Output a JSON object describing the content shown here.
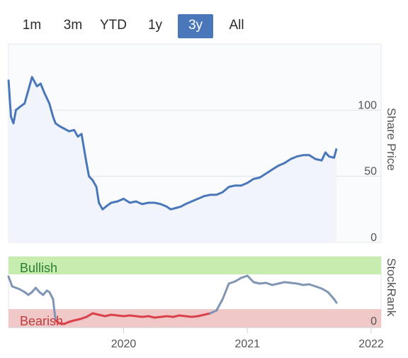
{
  "range_selector": {
    "buttons": [
      {
        "label": "1m",
        "active": false
      },
      {
        "label": "3m",
        "active": false
      },
      {
        "label": "YTD",
        "active": false
      },
      {
        "label": "1y",
        "active": false
      },
      {
        "label": "3y",
        "active": true
      },
      {
        "label": "All",
        "active": false
      }
    ]
  },
  "colors": {
    "accent": "#4a77b9",
    "price_line": "#4a77b9",
    "bullish_zone": "#c6ecb0",
    "bearish_zone": "#f1c8c8",
    "bullish_text": "#2e7d32",
    "bearish_text": "#c23b3b",
    "rank_bearish_line": "#d9404a",
    "rank_neutral_line": "#7f95b3"
  },
  "chart_data": [
    {
      "type": "line",
      "ylabel": "Share Price",
      "y_ticks": [
        0,
        50,
        100
      ],
      "ylim": [
        0,
        150
      ],
      "x_ticks": [
        "2020",
        "2021",
        "2022"
      ],
      "grid": true,
      "series": [
        {
          "values_by_year": [
            [
              2019.07,
              123
            ],
            [
              2019.09,
              95
            ],
            [
              2019.11,
              90
            ],
            [
              2019.13,
              100
            ],
            [
              2019.17,
              103
            ],
            [
              2019.2,
              105
            ],
            [
              2019.23,
              115
            ],
            [
              2019.26,
              125
            ],
            [
              2019.3,
              118
            ],
            [
              2019.33,
              120
            ],
            [
              2019.36,
              113
            ],
            [
              2019.4,
              105
            ],
            [
              2019.43,
              95
            ],
            [
              2019.45,
              90
            ],
            [
              2019.48,
              88
            ],
            [
              2019.52,
              86
            ],
            [
              2019.56,
              84
            ],
            [
              2019.6,
              85
            ],
            [
              2019.63,
              80
            ],
            [
              2019.66,
              82
            ],
            [
              2019.7,
              60
            ],
            [
              2019.72,
              50
            ],
            [
              2019.75,
              47
            ],
            [
              2019.78,
              42
            ],
            [
              2019.8,
              30
            ],
            [
              2019.83,
              25
            ],
            [
              2019.87,
              28
            ],
            [
              2019.9,
              30
            ],
            [
              2019.95,
              31
            ],
            [
              2020.0,
              33
            ],
            [
              2020.05,
              30
            ],
            [
              2020.1,
              31
            ],
            [
              2020.15,
              29
            ],
            [
              2020.2,
              30
            ],
            [
              2020.25,
              30
            ],
            [
              2020.3,
              29
            ],
            [
              2020.35,
              27
            ],
            [
              2020.38,
              25
            ],
            [
              2020.42,
              26
            ],
            [
              2020.46,
              27
            ],
            [
              2020.5,
              29
            ],
            [
              2020.55,
              31
            ],
            [
              2020.6,
              33
            ],
            [
              2020.65,
              35
            ],
            [
              2020.7,
              36
            ],
            [
              2020.75,
              36
            ],
            [
              2020.8,
              38
            ],
            [
              2020.85,
              42
            ],
            [
              2020.9,
              43
            ],
            [
              2020.95,
              43
            ],
            [
              2021.0,
              45
            ],
            [
              2021.05,
              48
            ],
            [
              2021.1,
              49
            ],
            [
              2021.15,
              52
            ],
            [
              2021.2,
              55
            ],
            [
              2021.25,
              58
            ],
            [
              2021.3,
              60
            ],
            [
              2021.35,
              63
            ],
            [
              2021.4,
              65
            ],
            [
              2021.45,
              66
            ],
            [
              2021.5,
              66
            ],
            [
              2021.55,
              63
            ],
            [
              2021.6,
              62
            ],
            [
              2021.63,
              68
            ],
            [
              2021.66,
              65
            ],
            [
              2021.7,
              64
            ],
            [
              2021.72,
              71
            ]
          ]
        }
      ]
    },
    {
      "type": "line",
      "ylabel": "StockRank",
      "zones": [
        {
          "label": "Bullish",
          "from": 80,
          "to": 100
        },
        {
          "label": "Bearish",
          "from": 0,
          "to": 20
        }
      ],
      "y_ticks": [
        0
      ],
      "x_ticks": [
        "2020",
        "2021",
        "2022"
      ],
      "series": [
        {
          "values_by_year": [
            [
              2019.07,
              72
            ],
            [
              2019.1,
              58
            ],
            [
              2019.13,
              56
            ],
            [
              2019.16,
              54
            ],
            [
              2019.2,
              50
            ],
            [
              2019.23,
              46
            ],
            [
              2019.26,
              50
            ],
            [
              2019.29,
              56
            ],
            [
              2019.32,
              50
            ],
            [
              2019.35,
              46
            ],
            [
              2019.38,
              52
            ],
            [
              2019.4,
              50
            ],
            [
              2019.43,
              40
            ],
            [
              2019.45,
              10
            ],
            [
              2019.48,
              6
            ],
            [
              2019.52,
              5
            ],
            [
              2019.56,
              8
            ],
            [
              2019.6,
              10
            ],
            [
              2019.65,
              12
            ],
            [
              2019.7,
              15
            ],
            [
              2019.75,
              20
            ],
            [
              2019.8,
              18
            ],
            [
              2019.85,
              16
            ],
            [
              2019.9,
              18
            ],
            [
              2019.95,
              17
            ],
            [
              2020.0,
              16
            ],
            [
              2020.05,
              17
            ],
            [
              2020.1,
              16
            ],
            [
              2020.15,
              15
            ],
            [
              2020.2,
              16
            ],
            [
              2020.25,
              14
            ],
            [
              2020.3,
              15
            ],
            [
              2020.35,
              16
            ],
            [
              2020.4,
              15
            ],
            [
              2020.45,
              17
            ],
            [
              2020.5,
              16
            ],
            [
              2020.55,
              15
            ],
            [
              2020.6,
              16
            ],
            [
              2020.65,
              18
            ],
            [
              2020.7,
              20
            ],
            [
              2020.75,
              24
            ],
            [
              2020.8,
              40
            ],
            [
              2020.85,
              62
            ],
            [
              2020.9,
              65
            ],
            [
              2020.95,
              70
            ],
            [
              2021.0,
              73
            ],
            [
              2021.05,
              64
            ],
            [
              2021.1,
              62
            ],
            [
              2021.15,
              63
            ],
            [
              2021.2,
              60
            ],
            [
              2021.25,
              62
            ],
            [
              2021.3,
              64
            ],
            [
              2021.35,
              63
            ],
            [
              2021.4,
              62
            ],
            [
              2021.45,
              60
            ],
            [
              2021.5,
              61
            ],
            [
              2021.55,
              58
            ],
            [
              2021.6,
              55
            ],
            [
              2021.65,
              50
            ],
            [
              2021.7,
              40
            ],
            [
              2021.72,
              35
            ]
          ]
        }
      ]
    }
  ]
}
